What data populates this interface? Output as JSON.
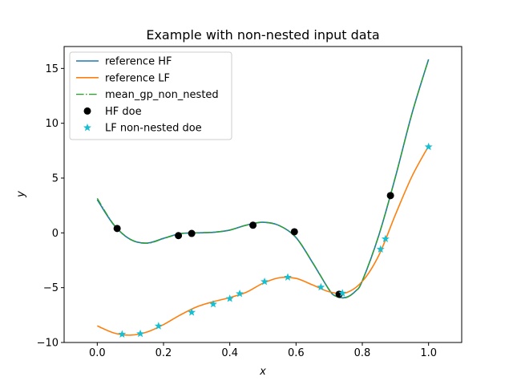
{
  "chart_data": {
    "type": "line",
    "title": "Example with non-nested input data",
    "xlabel": "x",
    "ylabel": "y",
    "xlim": [
      -0.1,
      1.1
    ],
    "ylim": [
      -10,
      17
    ],
    "xticks": [
      0.0,
      0.2,
      0.4,
      0.6,
      0.8,
      1.0
    ],
    "xtick_labels": [
      "0.0",
      "0.2",
      "0.4",
      "0.6",
      "0.8",
      "1.0"
    ],
    "yticks": [
      -10,
      -5,
      0,
      5,
      10,
      15
    ],
    "ytick_labels": [
      "−10",
      "−5",
      "0",
      "5",
      "10",
      "15"
    ],
    "grid": false,
    "legend_position": "upper-left",
    "series": [
      {
        "name": "reference HF",
        "kind": "line",
        "color": "#1f77b4",
        "x": [
          0.0,
          0.05,
          0.1,
          0.15,
          0.2,
          0.25,
          0.3,
          0.35,
          0.4,
          0.45,
          0.5,
          0.55,
          0.6,
          0.65,
          0.7,
          0.72,
          0.75,
          0.78,
          0.8,
          0.85,
          0.9,
          0.95,
          1.0
        ],
        "y": [
          3.03,
          0.73,
          -0.6,
          -0.93,
          -0.5,
          -0.07,
          0.0,
          0.05,
          0.25,
          0.71,
          0.97,
          0.66,
          -0.43,
          -2.72,
          -5.2,
          -5.76,
          -5.89,
          -5.3,
          -4.38,
          -0.21,
          5.1,
          10.9,
          15.83
        ]
      },
      {
        "name": "reference LF",
        "kind": "line",
        "color": "#ff7f0e",
        "x": [
          0.0,
          0.05,
          0.1,
          0.15,
          0.2,
          0.25,
          0.3,
          0.35,
          0.4,
          0.45,
          0.5,
          0.55,
          0.6,
          0.65,
          0.7,
          0.75,
          0.8,
          0.85,
          0.9,
          0.95,
          1.0
        ],
        "y": [
          -8.48,
          -9.13,
          -9.33,
          -9.05,
          -8.37,
          -7.5,
          -6.75,
          -6.28,
          -5.9,
          -5.42,
          -4.6,
          -4.09,
          -4.15,
          -4.75,
          -5.37,
          -5.47,
          -4.42,
          -2.04,
          1.67,
          5.16,
          7.92
        ]
      },
      {
        "name": "mean_gp_non_nested",
        "kind": "dashdot",
        "color": "#2ca02c",
        "x": [
          0.0,
          0.05,
          0.1,
          0.15,
          0.2,
          0.25,
          0.3,
          0.35,
          0.4,
          0.45,
          0.5,
          0.55,
          0.6,
          0.65,
          0.7,
          0.72,
          0.75,
          0.78,
          0.8,
          0.85,
          0.9,
          0.95,
          1.0
        ],
        "y": [
          3.15,
          0.76,
          -0.58,
          -0.95,
          -0.52,
          -0.08,
          0.01,
          0.06,
          0.26,
          0.7,
          0.96,
          0.65,
          -0.42,
          -2.7,
          -5.18,
          -5.78,
          -5.92,
          -5.31,
          -4.37,
          -0.19,
          5.12,
          10.88,
          15.85
        ]
      },
      {
        "name": "HF doe",
        "kind": "scatter-circle",
        "color": "#000000",
        "x": [
          0.06,
          0.245,
          0.285,
          0.47,
          0.595,
          0.73,
          0.885
        ],
        "y": [
          0.4,
          -0.25,
          -0.05,
          0.7,
          0.1,
          -5.6,
          3.4
        ]
      },
      {
        "name": "LF non-nested doe",
        "kind": "scatter-star",
        "color": "#17becf",
        "x": [
          0.075,
          0.13,
          0.185,
          0.285,
          0.35,
          0.4,
          0.43,
          0.505,
          0.575,
          0.675,
          0.74,
          0.855,
          0.87,
          1.0
        ],
        "y": [
          -9.25,
          -9.2,
          -8.5,
          -7.25,
          -6.5,
          -6.0,
          -5.55,
          -4.45,
          -4.05,
          -4.95,
          -5.5,
          -1.5,
          -0.55,
          7.85
        ]
      }
    ]
  }
}
